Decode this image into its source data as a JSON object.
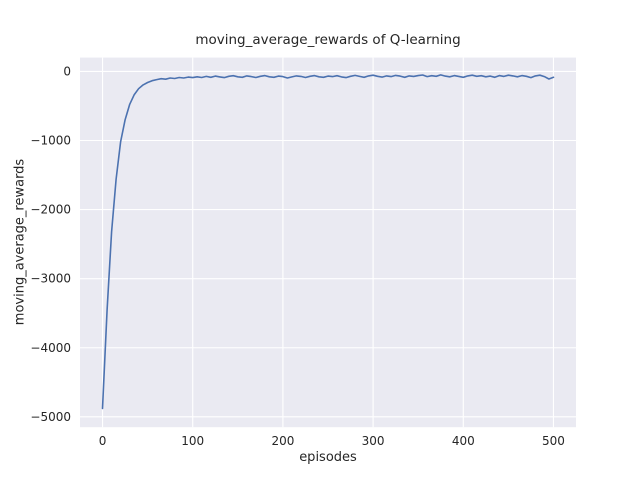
{
  "chart_data": {
    "type": "line",
    "title": "moving_average_rewards of Q-learning",
    "xlabel": "episodes",
    "ylabel": "moving_average_rewards",
    "series_name": "moving average reward",
    "x": [
      0,
      5,
      10,
      15,
      20,
      25,
      30,
      35,
      40,
      45,
      50,
      55,
      60,
      65,
      70,
      75,
      80,
      85,
      90,
      95,
      100,
      105,
      110,
      115,
      120,
      125,
      130,
      135,
      140,
      145,
      150,
      155,
      160,
      165,
      170,
      175,
      180,
      185,
      190,
      195,
      200,
      205,
      210,
      215,
      220,
      225,
      230,
      235,
      240,
      245,
      250,
      255,
      260,
      265,
      270,
      275,
      280,
      285,
      290,
      295,
      300,
      305,
      310,
      315,
      320,
      325,
      330,
      335,
      340,
      345,
      350,
      355,
      360,
      365,
      370,
      375,
      380,
      385,
      390,
      395,
      400,
      405,
      410,
      415,
      420,
      425,
      430,
      435,
      440,
      445,
      450,
      455,
      460,
      465,
      470,
      475,
      480,
      485,
      490,
      495,
      500
    ],
    "y": [
      -4880,
      -3450,
      -2320,
      -1560,
      -1020,
      -700,
      -480,
      -340,
      -250,
      -195,
      -160,
      -135,
      -118,
      -105,
      -112,
      -95,
      -102,
      -88,
      -95,
      -82,
      -90,
      -78,
      -88,
      -72,
      -85,
      -68,
      -80,
      -90,
      -70,
      -62,
      -78,
      -85,
      -65,
      -75,
      -88,
      -70,
      -60,
      -78,
      -85,
      -68,
      -75,
      -95,
      -80,
      -65,
      -72,
      -88,
      -70,
      -60,
      -78,
      -85,
      -68,
      -75,
      -62,
      -80,
      -90,
      -70,
      -58,
      -72,
      -85,
      -65,
      -55,
      -70,
      -82,
      -65,
      -75,
      -58,
      -68,
      -85,
      -65,
      -72,
      -60,
      -52,
      -75,
      -62,
      -70,
      -50,
      -68,
      -78,
      -60,
      -72,
      -85,
      -65,
      -55,
      -70,
      -62,
      -78,
      -68,
      -85,
      -60,
      -72,
      -55,
      -65,
      -78,
      -60,
      -70,
      -90,
      -65,
      -55,
      -75,
      -110,
      -85
    ],
    "xlim": [
      -25,
      525
    ],
    "ylim": [
      -5150,
      200
    ],
    "xticks": [
      0,
      100,
      200,
      300,
      400,
      500
    ],
    "yticks": [
      0,
      -1000,
      -2000,
      -3000,
      -4000,
      -5000
    ],
    "grid": true,
    "legend": "none",
    "style": "seaborn-darkgrid",
    "line_color": "#4c72b0",
    "line_width": 1.6,
    "background_color": "#eaeaf2",
    "grid_color": "#ffffff",
    "text_color": "#262626",
    "tick_font_size": 12
  }
}
